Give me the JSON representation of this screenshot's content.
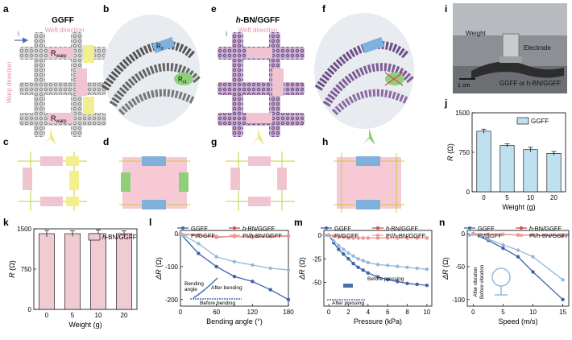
{
  "panel_labels": [
    "a",
    "b",
    "c",
    "d",
    "e",
    "f",
    "g",
    "h",
    "i",
    "j",
    "k",
    "l",
    "m",
    "n"
  ],
  "schematic": {
    "a_title": "GGFF",
    "e_title_prefix": "h",
    "e_title_suffix": "-BN/GGFF",
    "weft_direction": "Weft direction",
    "warp_direction": "Warp direction",
    "current_symbol": "I",
    "r_warp": "R",
    "r_warp_sub": "warp",
    "r_weft": "R",
    "r_weft_sub": "weft",
    "r_c1": "R",
    "r_c1_sub": "c1",
    "r_c2": "R",
    "r_c2_sub": "c2",
    "r_0": "R",
    "r_0_sub": "0"
  },
  "photo": {
    "weight_label": "Weight",
    "electrode_label": "Electrode",
    "sample_label": "GGFF or h-BN/GGFF",
    "scale_bar": "1 cm"
  },
  "insets": {
    "bending_angle": "Bending",
    "bending_angle_2": "angle",
    "after_bending": "After bending",
    "before_bending": "Before bending",
    "before_pressing": "Before pressing",
    "after_pressing": "After pressing",
    "after_vibration": "After vibration",
    "before_vibration": "Before vibration"
  },
  "colors": {
    "ggff": "#3f63a8",
    "hbn_ggff": "#d94848",
    "pi_ggff": "#93b9dc",
    "pi_hbn_ggff": "#ec9b9b",
    "bar_ggff": "#bfe0ef",
    "bar_hbn": "#f1cbd2"
  },
  "chart_data": [
    {
      "panel": "j",
      "type": "bar",
      "title": "",
      "xlabel": "Weight (g)",
      "ylabel": "R (Ω)",
      "categories": [
        "0",
        "5",
        "10",
        "20"
      ],
      "values": [
        1150,
        880,
        800,
        730
      ],
      "errors": [
        40,
        30,
        45,
        35
      ],
      "ylim": [
        0,
        1500
      ],
      "yticks": [
        "0",
        "750",
        "1500"
      ],
      "legend": [
        "GGFF"
      ]
    },
    {
      "panel": "k",
      "type": "bar",
      "title": "",
      "xlabel": "Weight (g)",
      "ylabel": "R (Ω)",
      "categories": [
        "0",
        "5",
        "10",
        "20"
      ],
      "values": [
        1410,
        1410,
        1410,
        1410
      ],
      "errors": [
        60,
        50,
        70,
        50
      ],
      "ylim": [
        0,
        1500
      ],
      "yticks": [
        "0",
        "750",
        "1500"
      ],
      "legend": [
        "h-BN/GGFF"
      ]
    },
    {
      "panel": "l",
      "type": "line",
      "xlabel": "Bending angle (°)",
      "ylabel": "ΔR (Ω)",
      "xlim": [
        0,
        180
      ],
      "ylim": [
        -220,
        10
      ],
      "xticks": [
        "0",
        "60",
        "120",
        "180"
      ],
      "yticks": [
        "0",
        "-100",
        "-200"
      ],
      "x": [
        0,
        30,
        60,
        90,
        120,
        150,
        180
      ],
      "series": [
        {
          "name": "GGFF",
          "values": [
            0,
            -60,
            -100,
            -130,
            -145,
            -170,
            -200
          ]
        },
        {
          "name": "h-BN/GGFF",
          "values": [
            0,
            -5,
            -10,
            -8,
            -10,
            -8,
            -7
          ]
        },
        {
          "name": "PI/GGFF",
          "values": [
            0,
            -30,
            -70,
            -85,
            -95,
            -105,
            -110
          ]
        },
        {
          "name": "PI/h-BN/GGFF",
          "values": [
            0,
            -6,
            -8,
            -9,
            -8,
            -8,
            -8
          ]
        }
      ]
    },
    {
      "panel": "m",
      "type": "line",
      "xlabel": "Pressure (kPa)",
      "ylabel": "ΔR (Ω)",
      "xlim": [
        -0.5,
        10.5
      ],
      "ylim": [
        -75,
        5
      ],
      "xticks": [
        "0",
        "2",
        "4",
        "6",
        "8",
        "10"
      ],
      "yticks": [
        "0",
        "-25",
        "-50"
      ],
      "x": [
        0,
        0.5,
        1,
        1.5,
        2,
        2.5,
        3,
        3.5,
        4,
        5,
        6,
        7,
        8,
        9,
        10
      ],
      "series": [
        {
          "name": "GGFF",
          "values": [
            0,
            -8,
            -15,
            -20,
            -25,
            -30,
            -34,
            -37,
            -40,
            -44,
            -47,
            -49,
            -51,
            -52,
            -53
          ]
        },
        {
          "name": "h-BN/GGFF",
          "values": [
            0,
            -1,
            -2,
            -2,
            -3,
            -3,
            -3,
            -3,
            -3,
            -3,
            -3,
            -3,
            -3,
            -3,
            -3
          ]
        },
        {
          "name": "PI/GGFF",
          "values": [
            0,
            -6,
            -11,
            -15,
            -19,
            -22,
            -25,
            -27,
            -29,
            -31,
            -32,
            -33,
            -34,
            -35,
            -36
          ]
        },
        {
          "name": "PI/h-BN/GGFF",
          "values": [
            0,
            -1,
            -2,
            -2,
            -3,
            -3,
            -3,
            -3,
            -3,
            -3,
            -3,
            -3,
            -3,
            -3,
            -3
          ]
        }
      ]
    },
    {
      "panel": "n",
      "type": "line",
      "xlabel": "Speed (m/s)",
      "ylabel": "ΔR (Ω)",
      "xlim": [
        -1,
        16
      ],
      "ylim": [
        -110,
        5
      ],
      "xticks": [
        "0",
        "5",
        "10",
        "15"
      ],
      "yticks": [
        "0",
        "-50",
        "-100"
      ],
      "x": [
        0,
        2.5,
        5,
        7.5,
        10,
        15
      ],
      "series": [
        {
          "name": "GGFF",
          "values": [
            0,
            -10,
            -22,
            -35,
            -58,
            -100
          ]
        },
        {
          "name": "h-BN/GGFF",
          "values": [
            0,
            -1,
            -1,
            -2,
            -2,
            -3
          ]
        },
        {
          "name": "PI/GGFF",
          "values": [
            0,
            -8,
            -17,
            -25,
            -35,
            -70
          ]
        },
        {
          "name": "PI/h-BN/GGFF",
          "values": [
            0,
            -1,
            -1,
            -2,
            -2,
            -2
          ]
        }
      ]
    }
  ]
}
